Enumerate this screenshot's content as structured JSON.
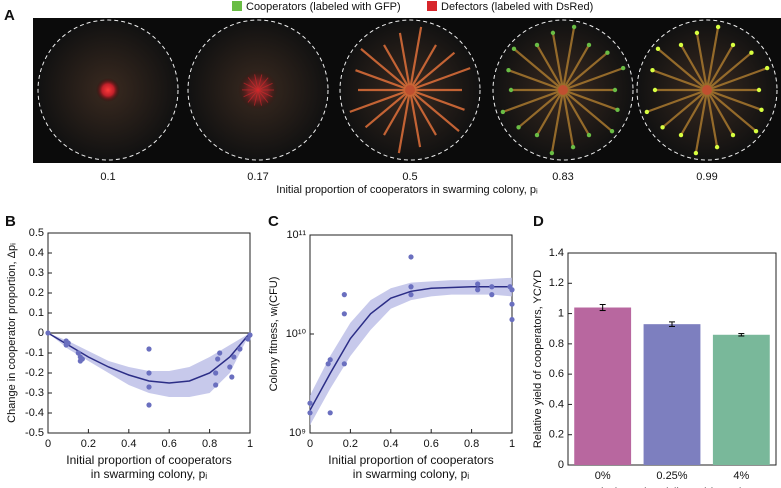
{
  "panel_a": {
    "label": "A",
    "legend": [
      {
        "name": "Cooperators (labeled with GFP)",
        "color": "#6abd45"
      },
      {
        "name": "Defectors (labeled with DsRed)",
        "color": "#d7262b"
      }
    ],
    "categories": [
      "0.1",
      "0.17",
      "0.5",
      "0.83",
      "0.99"
    ],
    "xlabel": "Initial proportion of cooperators in swarming colony, pᵢ"
  },
  "chart_data": [
    {
      "type": "scatter",
      "panel": "B",
      "ylabel": "Change in cooperator proportion, Δpᵢ",
      "xlabel": [
        "Initial proportion of cooperators",
        "in swarming colony, pᵢ"
      ],
      "xlim": [
        0,
        1
      ],
      "xticks": [
        0,
        0.2,
        0.4,
        0.6,
        0.8,
        1
      ],
      "ylim": [
        -0.5,
        0.5
      ],
      "yticks": [
        -0.5,
        -0.4,
        -0.3,
        -0.2,
        -0.1,
        0,
        0.1,
        0.2,
        0.3,
        0.4,
        0.5
      ],
      "reference_line": 0,
      "color": "#6a6fbf",
      "band_color": "#b9bbe6",
      "line_color": "#2b2d86",
      "x": [
        0,
        0.09,
        0.09,
        0.1,
        0.15,
        0.16,
        0.17,
        0.16,
        0.5,
        0.5,
        0.5,
        0.5,
        0.83,
        0.83,
        0.84,
        0.85,
        0.9,
        0.91,
        0.92,
        0.95,
        0.99,
        1
      ],
      "values": [
        0,
        -0.04,
        -0.06,
        -0.05,
        -0.1,
        -0.12,
        -0.13,
        -0.14,
        -0.08,
        -0.2,
        -0.27,
        -0.36,
        -0.2,
        -0.26,
        -0.13,
        -0.1,
        -0.17,
        -0.22,
        -0.12,
        -0.08,
        -0.03,
        -0.01
      ],
      "fit": {
        "x": [
          0,
          0.1,
          0.2,
          0.3,
          0.4,
          0.5,
          0.6,
          0.7,
          0.8,
          0.9,
          1
        ],
        "values": [
          0,
          -0.06,
          -0.12,
          -0.17,
          -0.21,
          -0.24,
          -0.25,
          -0.24,
          -0.2,
          -0.12,
          0
        ],
        "lower": [
          0,
          -0.08,
          -0.14,
          -0.2,
          -0.26,
          -0.3,
          -0.32,
          -0.32,
          -0.3,
          -0.2,
          0
        ],
        "upper": [
          0,
          -0.04,
          -0.09,
          -0.14,
          -0.17,
          -0.19,
          -0.19,
          -0.17,
          -0.12,
          -0.06,
          0
        ]
      }
    },
    {
      "type": "scatter",
      "panel": "C",
      "ylabel": "Colony fitness, wᵢ(CFU)",
      "xlabel": [
        "Initial proportion of cooperators",
        "in swarming colony, pᵢ"
      ],
      "xlim": [
        0,
        1
      ],
      "xticks": [
        0,
        0.2,
        0.4,
        0.6,
        0.8,
        1
      ],
      "log_y": true,
      "ylim": [
        1000000000,
        100000000000
      ],
      "yticks": [
        {
          "value": 1000000000,
          "label": "10⁹"
        },
        {
          "value": 10000000000,
          "label": "10¹⁰"
        },
        {
          "value": 100000000000,
          "label": "10¹¹"
        }
      ],
      "color": "#6a6fbf",
      "band_color": "#b9bbe6",
      "line_color": "#2b2d86",
      "x": [
        0,
        0,
        0.09,
        0.1,
        0.1,
        0.17,
        0.17,
        0.17,
        0.5,
        0.5,
        0.5,
        0.83,
        0.83,
        0.9,
        0.9,
        0.99,
        1,
        1,
        1
      ],
      "values": [
        1600000000,
        2000000000,
        5000000000,
        5500000000,
        1600000000,
        5000000000,
        25000000000,
        16000000000,
        60000000000,
        30000000000,
        25000000000,
        32000000000,
        28000000000,
        30000000000,
        25000000000,
        30000000000,
        20000000000,
        14000000000,
        28000000000
      ],
      "fit": {
        "x": [
          0,
          0.1,
          0.2,
          0.3,
          0.4,
          0.5,
          0.6,
          0.7,
          0.8,
          0.9,
          1
        ],
        "values": [
          1700000000,
          4000000000,
          9000000000,
          16000000000,
          23000000000,
          27000000000,
          29000000000,
          29500000000,
          30000000000,
          30000000000,
          30000000000
        ],
        "lower": [
          1200000000,
          2800000000,
          6000000000,
          11000000000,
          18000000000,
          22000000000,
          24000000000,
          25000000000,
          25000000000,
          25000000000,
          24000000000
        ],
        "upper": [
          2400000000,
          6000000000,
          13000000000,
          22000000000,
          29000000000,
          33000000000,
          34000000000,
          35000000000,
          35000000000,
          36000000000,
          37000000000
        ]
      }
    },
    {
      "type": "bar",
      "panel": "D",
      "ylabel": "Relative yield of cooperators, YC/YD",
      "xlabel": [
        "Inducer level (L-arabinose)"
      ],
      "categories": [
        "0%",
        "0.25%",
        "4%"
      ],
      "values": [
        1.04,
        0.93,
        0.86
      ],
      "errors": [
        0.02,
        0.015,
        0.008
      ],
      "colors": [
        "#b8679f",
        "#7d7fbf",
        "#79b89a"
      ],
      "ylim": [
        0,
        1.4
      ],
      "yticks": [
        0,
        0.2,
        0.4,
        0.6,
        0.8,
        1,
        1.2,
        1.4
      ]
    }
  ]
}
